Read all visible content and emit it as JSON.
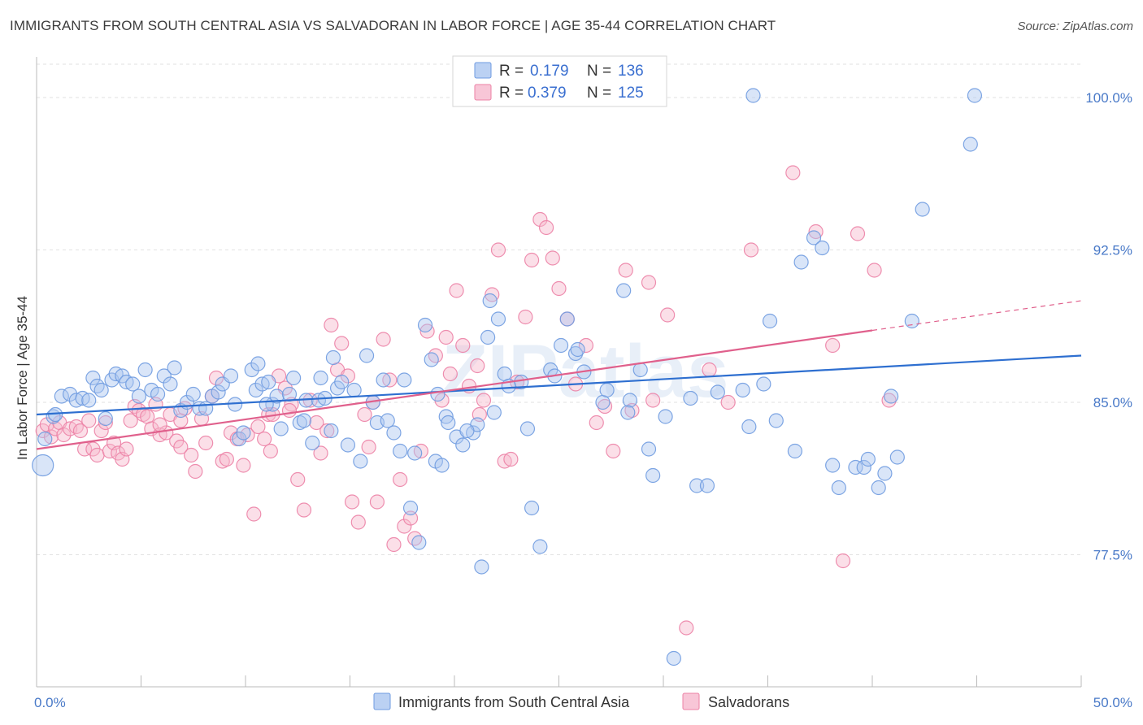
{
  "title": "IMMIGRANTS FROM SOUTH CENTRAL ASIA VS SALVADORAN IN LABOR FORCE | AGE 35-44 CORRELATION CHART",
  "source": "Source: ZipAtlas.com",
  "watermark": "ZIPatlas",
  "colors": {
    "blue": "#6f9be0",
    "blue_fill": "#aac6f0",
    "pink": "#ec82a6",
    "pink_fill": "#f6b8cd",
    "blue_line": "#2e6fd0",
    "pink_line": "#e0608c",
    "axis_text": "#4a7ac8"
  },
  "legend": {
    "r_label": "R =",
    "n_label": "N =",
    "rows": [
      {
        "series": "blue",
        "r": "0.179",
        "n": "136"
      },
      {
        "series": "pink",
        "r": "0.379",
        "n": "125"
      }
    ]
  },
  "chart_data": {
    "type": "scatter",
    "ylabel": "In Labor Force | Age 35-44",
    "xlabel": "",
    "xlim": [
      0,
      50
    ],
    "ylim": [
      71.0,
      102.0
    ],
    "x_tick_labels": [
      "0.0%",
      "50.0%"
    ],
    "y_ticks": [
      77.5,
      85.0,
      92.5,
      100.0
    ],
    "y_tick_labels": [
      "77.5%",
      "85.0%",
      "92.5%",
      "100.0%"
    ],
    "grid": true,
    "series": [
      {
        "name": "Immigrants from South Central Asia",
        "color": "blue",
        "trend": {
          "x": [
            0,
            50
          ],
          "y": [
            84.4,
            87.3
          ]
        },
        "points": [
          [
            0.3,
            81.9
          ],
          [
            0.4,
            83.2
          ],
          [
            0.8,
            84.3
          ],
          [
            0.9,
            84.4
          ],
          [
            1.2,
            85.3
          ],
          [
            1.6,
            85.4
          ],
          [
            1.9,
            85.1
          ],
          [
            2.2,
            85.2
          ],
          [
            2.5,
            85.1
          ],
          [
            2.7,
            86.2
          ],
          [
            2.9,
            85.8
          ],
          [
            3.1,
            85.6
          ],
          [
            3.3,
            84.2
          ],
          [
            3.6,
            86.1
          ],
          [
            3.8,
            86.4
          ],
          [
            4.1,
            86.3
          ],
          [
            4.3,
            86.0
          ],
          [
            4.6,
            85.9
          ],
          [
            4.9,
            85.3
          ],
          [
            5.2,
            86.6
          ],
          [
            5.5,
            85.6
          ],
          [
            5.8,
            85.4
          ],
          [
            6.1,
            86.3
          ],
          [
            6.4,
            85.9
          ],
          [
            6.6,
            86.7
          ],
          [
            6.9,
            84.6
          ],
          [
            7.2,
            85.0
          ],
          [
            7.5,
            85.4
          ],
          [
            7.8,
            84.7
          ],
          [
            8.1,
            84.7
          ],
          [
            8.4,
            85.3
          ],
          [
            8.7,
            85.5
          ],
          [
            8.9,
            85.9
          ],
          [
            9.3,
            86.3
          ],
          [
            9.5,
            84.9
          ],
          [
            9.7,
            83.2
          ],
          [
            9.9,
            83.5
          ],
          [
            10.3,
            86.6
          ],
          [
            10.5,
            85.6
          ],
          [
            10.6,
            86.9
          ],
          [
            10.8,
            85.9
          ],
          [
            11.1,
            86.0
          ],
          [
            11.3,
            84.9
          ],
          [
            11.5,
            85.3
          ],
          [
            11.7,
            83.7
          ],
          [
            12.1,
            85.4
          ],
          [
            12.3,
            86.2
          ],
          [
            12.6,
            84.0
          ],
          [
            12.9,
            85.1
          ],
          [
            13.2,
            83.0
          ],
          [
            13.5,
            85.1
          ],
          [
            13.8,
            85.2
          ],
          [
            14.1,
            83.6
          ],
          [
            14.4,
            85.7
          ],
          [
            14.6,
            86.0
          ],
          [
            14.9,
            82.9
          ],
          [
            15.2,
            85.6
          ],
          [
            15.5,
            82.1
          ],
          [
            15.8,
            87.3
          ],
          [
            16.1,
            85.0
          ],
          [
            16.3,
            84.0
          ],
          [
            16.6,
            86.1
          ],
          [
            16.8,
            84.1
          ],
          [
            17.1,
            83.5
          ],
          [
            17.4,
            82.6
          ],
          [
            17.6,
            86.1
          ],
          [
            17.9,
            79.8
          ],
          [
            18.1,
            82.5
          ],
          [
            18.3,
            78.1
          ],
          [
            18.6,
            88.8
          ],
          [
            18.9,
            87.1
          ],
          [
            19.1,
            82.1
          ],
          [
            19.4,
            81.9
          ],
          [
            19.6,
            84.3
          ],
          [
            19.7,
            84.0
          ],
          [
            20.1,
            83.3
          ],
          [
            20.4,
            82.9
          ],
          [
            20.9,
            83.5
          ],
          [
            21.1,
            83.9
          ],
          [
            21.3,
            76.9
          ],
          [
            21.6,
            88.2
          ],
          [
            21.7,
            90.0
          ],
          [
            22.1,
            89.1
          ],
          [
            22.4,
            86.4
          ],
          [
            23.2,
            86.0
          ],
          [
            23.7,
            79.8
          ],
          [
            23.5,
            83.7
          ],
          [
            24.1,
            77.9
          ],
          [
            24.6,
            86.6
          ],
          [
            25.1,
            87.8
          ],
          [
            25.4,
            89.1
          ],
          [
            25.8,
            87.4
          ],
          [
            25.9,
            87.6
          ],
          [
            27.1,
            85.0
          ],
          [
            27.3,
            85.6
          ],
          [
            28.1,
            90.5
          ],
          [
            28.4,
            85.1
          ],
          [
            28.9,
            86.6
          ],
          [
            29.3,
            82.7
          ],
          [
            29.5,
            81.4
          ],
          [
            30.1,
            84.3
          ],
          [
            30.5,
            72.4
          ],
          [
            31.3,
            85.2
          ],
          [
            31.6,
            80.9
          ],
          [
            32.1,
            80.9
          ],
          [
            32.6,
            85.5
          ],
          [
            33.8,
            85.6
          ],
          [
            34.1,
            83.8
          ],
          [
            34.8,
            85.9
          ],
          [
            35.1,
            89.0
          ],
          [
            35.4,
            84.1
          ],
          [
            36.3,
            82.6
          ],
          [
            36.6,
            91.9
          ],
          [
            37.2,
            93.1
          ],
          [
            37.6,
            92.6
          ],
          [
            38.1,
            81.9
          ],
          [
            38.4,
            80.8
          ],
          [
            39.2,
            81.8
          ],
          [
            39.6,
            81.8
          ],
          [
            39.8,
            82.2
          ],
          [
            40.3,
            80.8
          ],
          [
            40.6,
            81.5
          ],
          [
            40.9,
            85.3
          ],
          [
            41.2,
            82.3
          ],
          [
            41.9,
            89.0
          ],
          [
            42.4,
            94.5
          ],
          [
            34.3,
            100.1
          ],
          [
            44.9,
            100.1
          ],
          [
            44.7,
            97.7
          ],
          [
            28.3,
            84.5
          ],
          [
            26.2,
            86.5
          ],
          [
            24.8,
            86.3
          ],
          [
            22.6,
            85.8
          ],
          [
            21.9,
            84.5
          ],
          [
            13.6,
            86.2
          ],
          [
            14.2,
            87.2
          ],
          [
            12.8,
            84.1
          ],
          [
            11.0,
            84.9
          ],
          [
            19.2,
            85.4
          ],
          [
            20.6,
            83.6
          ]
        ]
      },
      {
        "name": "Salvadorans",
        "color": "pink",
        "trend": {
          "x": [
            0,
            50
          ],
          "y": [
            82.7,
            90.0
          ]
        },
        "trend_solid_to": 40,
        "points": [
          [
            0.3,
            83.6
          ],
          [
            0.5,
            83.9
          ],
          [
            0.7,
            83.3
          ],
          [
            0.9,
            83.7
          ],
          [
            1.1,
            84.0
          ],
          [
            1.3,
            83.4
          ],
          [
            1.6,
            83.7
          ],
          [
            1.9,
            83.8
          ],
          [
            2.1,
            83.6
          ],
          [
            2.3,
            82.7
          ],
          [
            2.5,
            84.1
          ],
          [
            2.7,
            82.7
          ],
          [
            2.9,
            82.4
          ],
          [
            3.1,
            83.6
          ],
          [
            3.3,
            84.0
          ],
          [
            3.5,
            82.6
          ],
          [
            3.7,
            83.0
          ],
          [
            3.9,
            82.5
          ],
          [
            4.1,
            82.2
          ],
          [
            4.3,
            82.7
          ],
          [
            4.5,
            84.1
          ],
          [
            4.7,
            84.8
          ],
          [
            4.9,
            84.6
          ],
          [
            5.1,
            84.4
          ],
          [
            5.3,
            84.3
          ],
          [
            5.5,
            83.7
          ],
          [
            5.7,
            84.9
          ],
          [
            5.9,
            83.4
          ],
          [
            6.2,
            83.5
          ],
          [
            6.4,
            84.4
          ],
          [
            6.7,
            83.1
          ],
          [
            6.9,
            84.1
          ],
          [
            7.1,
            84.7
          ],
          [
            7.4,
            82.4
          ],
          [
            7.6,
            81.6
          ],
          [
            7.9,
            84.2
          ],
          [
            8.1,
            83.0
          ],
          [
            8.4,
            85.3
          ],
          [
            8.6,
            86.2
          ],
          [
            8.9,
            82.1
          ],
          [
            9.1,
            82.2
          ],
          [
            9.3,
            83.5
          ],
          [
            9.6,
            83.2
          ],
          [
            9.9,
            81.9
          ],
          [
            10.1,
            83.4
          ],
          [
            10.4,
            79.5
          ],
          [
            10.6,
            83.8
          ],
          [
            10.9,
            83.2
          ],
          [
            11.1,
            84.4
          ],
          [
            11.3,
            84.4
          ],
          [
            11.6,
            86.3
          ],
          [
            11.9,
            85.7
          ],
          [
            12.2,
            84.9
          ],
          [
            12.5,
            81.2
          ],
          [
            12.8,
            79.7
          ],
          [
            13.1,
            85.1
          ],
          [
            13.4,
            84.0
          ],
          [
            13.6,
            82.5
          ],
          [
            13.9,
            83.6
          ],
          [
            14.1,
            88.8
          ],
          [
            14.4,
            86.6
          ],
          [
            14.6,
            87.9
          ],
          [
            14.9,
            86.3
          ],
          [
            15.1,
            80.1
          ],
          [
            15.4,
            79.1
          ],
          [
            15.7,
            84.4
          ],
          [
            16.1,
            85.0
          ],
          [
            16.3,
            80.1
          ],
          [
            16.6,
            88.1
          ],
          [
            16.9,
            86.1
          ],
          [
            17.1,
            78.0
          ],
          [
            17.4,
            81.2
          ],
          [
            17.6,
            78.9
          ],
          [
            17.9,
            79.3
          ],
          [
            18.1,
            78.3
          ],
          [
            18.4,
            82.6
          ],
          [
            18.7,
            88.5
          ],
          [
            19.1,
            87.3
          ],
          [
            19.4,
            85.1
          ],
          [
            19.6,
            88.2
          ],
          [
            19.8,
            86.4
          ],
          [
            20.1,
            90.5
          ],
          [
            20.4,
            87.8
          ],
          [
            20.7,
            85.8
          ],
          [
            21.1,
            86.8
          ],
          [
            21.4,
            85.1
          ],
          [
            21.8,
            90.3
          ],
          [
            22.1,
            92.5
          ],
          [
            22.4,
            82.1
          ],
          [
            22.7,
            82.2
          ],
          [
            23.0,
            86.0
          ],
          [
            23.4,
            89.2
          ],
          [
            23.7,
            92.0
          ],
          [
            24.1,
            94.0
          ],
          [
            24.4,
            93.6
          ],
          [
            24.7,
            92.1
          ],
          [
            25.0,
            90.6
          ],
          [
            25.4,
            89.1
          ],
          [
            25.8,
            85.9
          ],
          [
            26.3,
            87.8
          ],
          [
            26.8,
            84.0
          ],
          [
            27.2,
            84.8
          ],
          [
            27.6,
            82.6
          ],
          [
            28.2,
            91.5
          ],
          [
            28.5,
            84.6
          ],
          [
            29.3,
            90.9
          ],
          [
            29.5,
            85.1
          ],
          [
            30.2,
            89.3
          ],
          [
            31.1,
            73.9
          ],
          [
            32.2,
            86.6
          ],
          [
            33.1,
            85.0
          ],
          [
            34.2,
            92.5
          ],
          [
            36.2,
            96.3
          ],
          [
            37.3,
            93.4
          ],
          [
            38.1,
            87.8
          ],
          [
            38.6,
            77.2
          ],
          [
            39.3,
            93.3
          ],
          [
            40.1,
            91.5
          ],
          [
            40.8,
            85.1
          ],
          [
            6.9,
            82.8
          ],
          [
            5.9,
            83.9
          ],
          [
            11.2,
            82.6
          ],
          [
            15.9,
            82.8
          ],
          [
            21.2,
            84.4
          ],
          [
            12.1,
            84.6
          ]
        ]
      }
    ]
  },
  "bottom_legend": [
    {
      "label": "Immigrants from South Central Asia",
      "color": "blue"
    },
    {
      "label": "Salvadorans",
      "color": "pink"
    }
  ]
}
